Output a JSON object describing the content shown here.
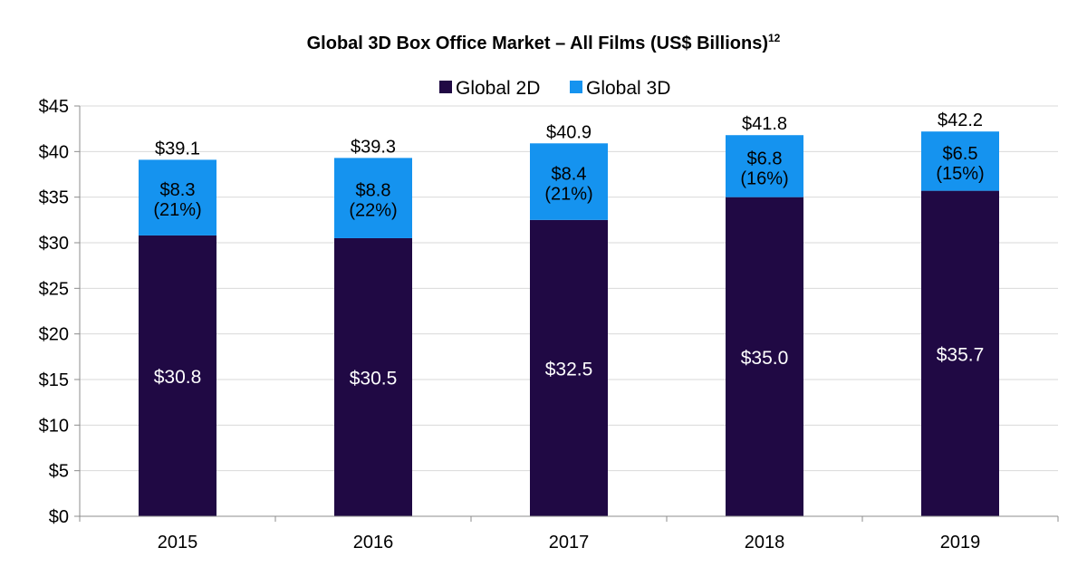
{
  "chart_data": {
    "type": "bar",
    "stacked": true,
    "title": "Global 3D Box Office Market – All Films (US$ Billions)",
    "title_superscript": "12",
    "categories": [
      "2015",
      "2016",
      "2017",
      "2018",
      "2019"
    ],
    "series": [
      {
        "name": "Global 2D",
        "color": "#200944",
        "values": [
          30.8,
          30.5,
          32.5,
          35.0,
          35.7
        ],
        "labels": [
          "$30.8",
          "$30.5",
          "$32.5",
          "$35.0",
          "$35.7"
        ]
      },
      {
        "name": "Global 3D",
        "color": "#1593ef",
        "values": [
          8.3,
          8.8,
          8.4,
          6.8,
          6.5
        ],
        "labels": [
          "$8.3",
          "$8.8",
          "$8.4",
          "$6.8",
          "$6.5"
        ],
        "share_labels": [
          "(21%)",
          "(22%)",
          "(21%)",
          "(16%)",
          "(15%)"
        ]
      }
    ],
    "totals": [
      39.1,
      39.3,
      40.9,
      41.8,
      42.2
    ],
    "total_labels": [
      "$39.1",
      "$39.3",
      "$40.9",
      "$41.8",
      "$42.2"
    ],
    "ylim": [
      0,
      45
    ],
    "yticks": [
      "$0",
      "$5",
      "$10",
      "$15",
      "$20",
      "$25",
      "$30",
      "$35",
      "$40",
      "$45"
    ],
    "xlabel": "",
    "ylabel": "",
    "grid": true,
    "legend_position": "top-center"
  }
}
